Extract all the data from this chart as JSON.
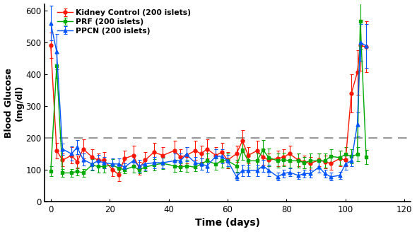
{
  "title": "",
  "xlabel": "Time (days)",
  "ylabel": "Blood Glucose\n(mg/dl)",
  "ylim": [
    0,
    620
  ],
  "xlim": [
    -2,
    122
  ],
  "yticks": [
    0,
    100,
    200,
    300,
    400,
    500,
    600
  ],
  "xticks": [
    0,
    20,
    40,
    60,
    80,
    100,
    120
  ],
  "dashed_line_y": 200,
  "series": {
    "Kidney Control (200 islets)": {
      "color": "#FF1500",
      "marker": "o",
      "x": [
        0,
        2,
        4,
        7,
        9,
        11,
        14,
        16,
        18,
        21,
        23,
        25,
        28,
        30,
        32,
        35,
        38,
        42,
        44,
        46,
        49,
        51,
        53,
        56,
        58,
        60,
        63,
        65,
        67,
        70,
        72,
        74,
        77,
        79,
        81,
        84,
        86,
        88,
        91,
        93,
        95,
        98,
        100,
        102,
        104,
        105,
        107
      ],
      "y": [
        490,
        160,
        130,
        145,
        125,
        165,
        140,
        130,
        130,
        100,
        85,
        135,
        145,
        105,
        130,
        155,
        145,
        160,
        140,
        145,
        160,
        150,
        165,
        145,
        155,
        130,
        150,
        190,
        145,
        160,
        140,
        130,
        135,
        140,
        150,
        130,
        125,
        120,
        130,
        125,
        120,
        135,
        130,
        340,
        405,
        490,
        485
      ],
      "yerr": [
        40,
        25,
        20,
        25,
        20,
        30,
        25,
        20,
        25,
        20,
        20,
        25,
        30,
        20,
        25,
        30,
        25,
        30,
        25,
        25,
        30,
        25,
        30,
        25,
        30,
        25,
        25,
        35,
        25,
        30,
        25,
        20,
        25,
        25,
        25,
        20,
        20,
        20,
        20,
        20,
        20,
        25,
        20,
        60,
        70,
        80,
        80
      ]
    },
    "PRF (200 islets)": {
      "color": "#00AA00",
      "marker": "s",
      "x": [
        0,
        2,
        4,
        7,
        9,
        11,
        14,
        16,
        18,
        21,
        23,
        25,
        28,
        30,
        32,
        35,
        38,
        42,
        44,
        46,
        49,
        51,
        53,
        56,
        58,
        60,
        63,
        65,
        67,
        70,
        72,
        74,
        77,
        79,
        81,
        84,
        86,
        88,
        91,
        93,
        95,
        98,
        100,
        102,
        104,
        105,
        107
      ],
      "y": [
        95,
        425,
        90,
        90,
        95,
        90,
        115,
        110,
        110,
        115,
        105,
        100,
        110,
        100,
        108,
        115,
        120,
        112,
        108,
        112,
        108,
        118,
        128,
        118,
        128,
        128,
        112,
        162,
        128,
        128,
        162,
        138,
        128,
        132,
        128,
        128,
        122,
        128,
        128,
        128,
        142,
        138,
        148,
        142,
        148,
        565,
        140
      ],
      "yerr": [
        15,
        40,
        12,
        12,
        12,
        12,
        18,
        18,
        18,
        18,
        12,
        12,
        18,
        12,
        12,
        18,
        18,
        18,
        12,
        18,
        12,
        18,
        22,
        18,
        22,
        22,
        18,
        32,
        22,
        22,
        32,
        28,
        22,
        22,
        22,
        22,
        18,
        22,
        22,
        22,
        22,
        22,
        22,
        22,
        22,
        85,
        22
      ]
    },
    "PPCN (200 islets)": {
      "color": "#0055FF",
      "marker": "^",
      "x": [
        0,
        2,
        4,
        7,
        9,
        11,
        14,
        16,
        18,
        21,
        23,
        25,
        28,
        30,
        32,
        35,
        38,
        42,
        44,
        46,
        49,
        51,
        53,
        56,
        58,
        60,
        63,
        65,
        67,
        70,
        72,
        74,
        77,
        79,
        81,
        84,
        86,
        88,
        91,
        93,
        95,
        98,
        100,
        102,
        104,
        105,
        107
      ],
      "y": [
        560,
        470,
        165,
        150,
        170,
        132,
        118,
        128,
        122,
        118,
        118,
        108,
        128,
        112,
        118,
        122,
        122,
        128,
        128,
        148,
        122,
        118,
        112,
        142,
        142,
        128,
        78,
        98,
        98,
        98,
        112,
        98,
        78,
        88,
        92,
        82,
        88,
        88,
        108,
        88,
        78,
        82,
        118,
        128,
        242,
        500,
        488
      ],
      "yerr": [
        55,
        55,
        18,
        22,
        22,
        18,
        18,
        18,
        18,
        18,
        18,
        12,
        18,
        18,
        18,
        18,
        18,
        22,
        22,
        22,
        18,
        18,
        18,
        22,
        22,
        18,
        12,
        18,
        18,
        18,
        18,
        18,
        12,
        12,
        12,
        12,
        12,
        12,
        18,
        12,
        12,
        12,
        18,
        18,
        38,
        58,
        68
      ]
    }
  }
}
